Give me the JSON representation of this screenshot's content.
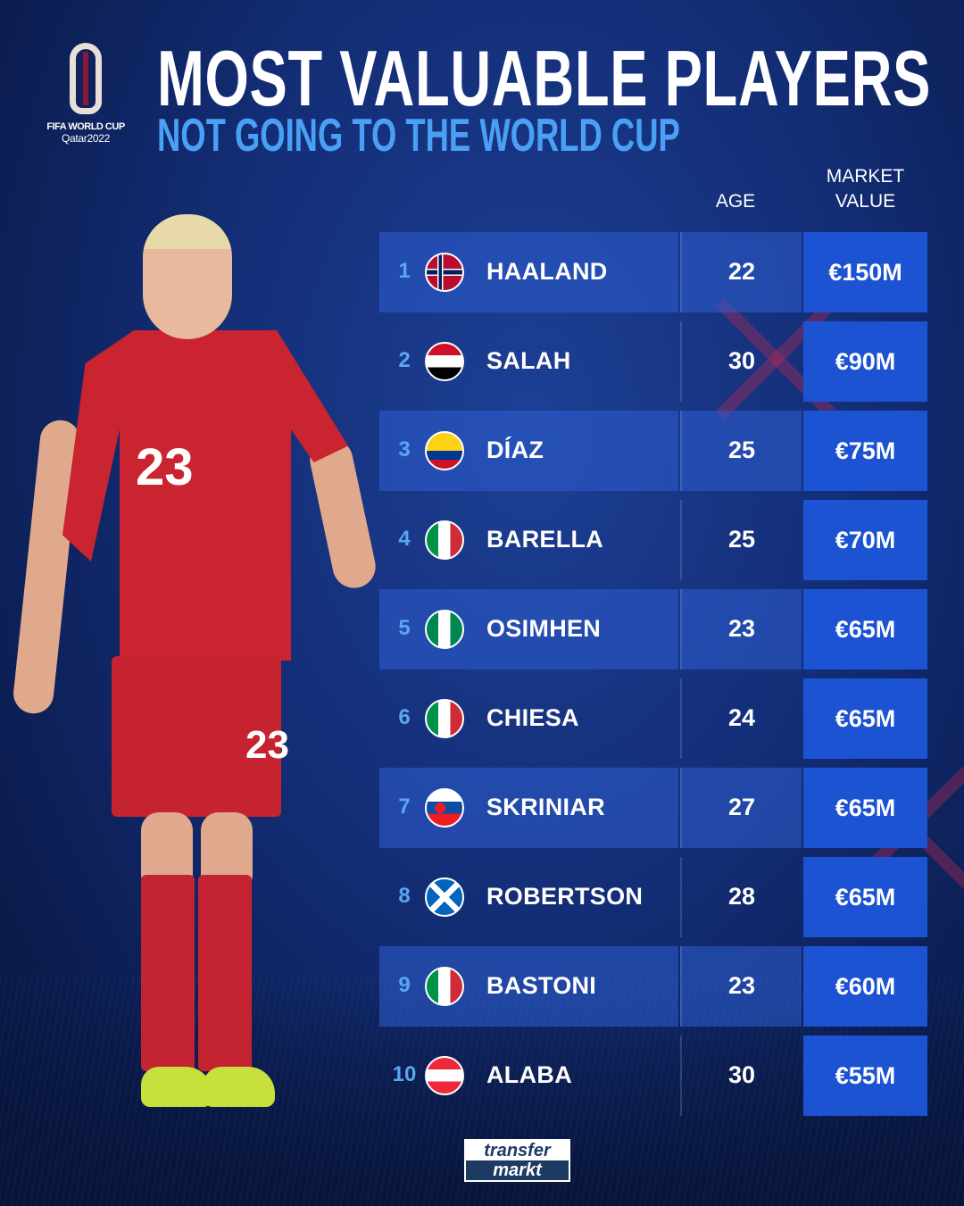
{
  "logo": {
    "line1": "FIFA WORLD CUP",
    "line2": "Qatar2022"
  },
  "title": "MOST VALUABLE PLAYERS",
  "subtitle": "NOT GOING TO THE WORLD CUP",
  "columns": {
    "age": "AGE",
    "market_value_1": "MARKET",
    "market_value_2": "VALUE"
  },
  "player_photo": {
    "shirt_number": "23"
  },
  "colors": {
    "background": "#132d75",
    "band": "#2d5fd2",
    "value_cell": "#1c53d3",
    "rank": "#5ba6ef",
    "subtitle": "#4aa0f5"
  },
  "rows": [
    {
      "rank": "1",
      "flag": "norway-flag-icon",
      "name": "HAALAND",
      "age": "22",
      "value": "€150M"
    },
    {
      "rank": "2",
      "flag": "egypt-flag-icon",
      "name": "SALAH",
      "age": "30",
      "value": "€90M"
    },
    {
      "rank": "3",
      "flag": "colombia-flag-icon",
      "name": "DÍAZ",
      "age": "25",
      "value": "€75M"
    },
    {
      "rank": "4",
      "flag": "italy-flag-icon",
      "name": "BARELLA",
      "age": "25",
      "value": "€70M"
    },
    {
      "rank": "5",
      "flag": "nigeria-flag-icon",
      "name": "OSIMHEN",
      "age": "23",
      "value": "€65M"
    },
    {
      "rank": "6",
      "flag": "italy-flag-icon",
      "name": "CHIESA",
      "age": "24",
      "value": "€65M"
    },
    {
      "rank": "7",
      "flag": "slovakia-flag-icon",
      "name": "SKRINIAR",
      "age": "27",
      "value": "€65M"
    },
    {
      "rank": "8",
      "flag": "scotland-flag-icon",
      "name": "ROBERTSON",
      "age": "28",
      "value": "€65M"
    },
    {
      "rank": "9",
      "flag": "italy-flag-icon",
      "name": "BASTONI",
      "age": "23",
      "value": "€60M"
    },
    {
      "rank": "10",
      "flag": "austria-flag-icon",
      "name": "ALABA",
      "age": "30",
      "value": "€55M"
    }
  ],
  "footer": {
    "brand_line1": "transfer",
    "brand_line2": "markt"
  }
}
